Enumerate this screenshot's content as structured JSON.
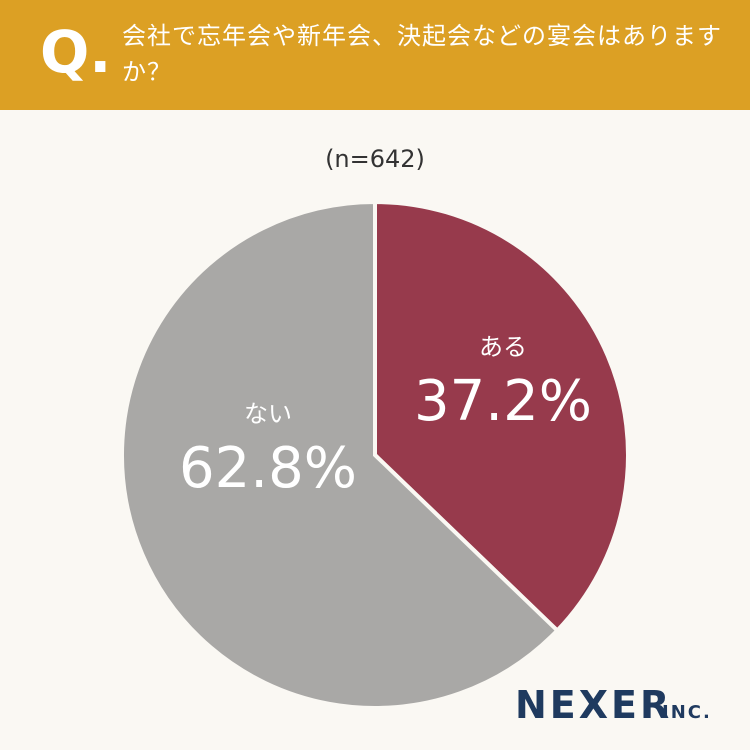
{
  "header_mark": "Q.",
  "chart_data": {
    "type": "pie",
    "title": "会社で忘年会や新年会、決起会などの宴会はありますか？",
    "subtitle": "(n=642)",
    "categories": [
      "ある",
      "ない"
    ],
    "values": [
      37.2,
      62.8
    ],
    "value_labels": [
      "37.2%",
      "62.8%"
    ],
    "colors": [
      "#973a4c",
      "#a9a8a6"
    ]
  },
  "logo": {
    "name": "NEXER",
    "suffix": "INC."
  }
}
